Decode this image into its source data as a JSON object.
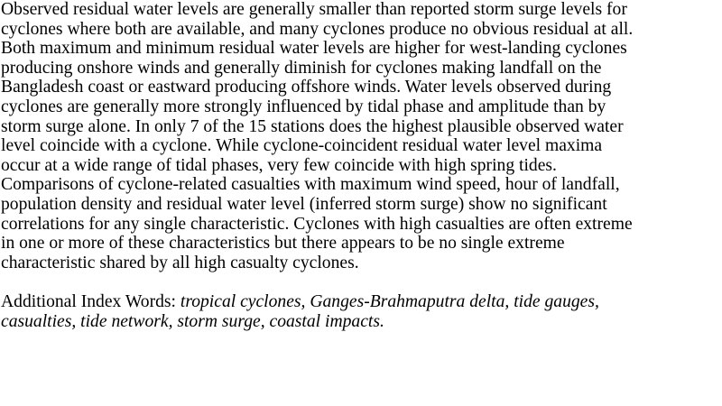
{
  "abstract": {
    "lines": [
      "Observed residual water levels are generally smaller than reported storm surge levels for",
      "cyclones where both are available, and many cyclones produce no obvious residual at all.",
      "Both maximum and minimum residual water levels are higher for west-landing cyclones",
      "producing onshore winds and generally diminish for cyclones making landfall on the",
      "Bangladesh coast or eastward producing offshore winds.  Water levels observed during",
      "cyclones are generally more strongly influenced by tidal phase and amplitude than by",
      "storm surge alone.  In only 7 of the 15 stations does the highest plausible observed water",
      "level coincide with a cyclone.  While cyclone-coincident residual water level maxima",
      "occur at a wide range of tidal phases, very few coincide with high spring tides.",
      "Comparisons of cyclone-related casualties with maximum wind speed, hour of landfall,",
      "population density and residual water level (inferred storm surge) show no significant",
      "correlations for any single characteristic.  Cyclones with high casualties are often extreme",
      "in one or more of these characteristics but there appears to be no single extreme",
      "characteristic shared by all high casualty cyclones."
    ]
  },
  "index_words": {
    "label": "Additional Index Words: ",
    "line1": "tropical cyclones, Ganges-Brahmaputra delta, tide gauges,",
    "line2": "casualties, tide network, storm surge, coastal impacts."
  }
}
